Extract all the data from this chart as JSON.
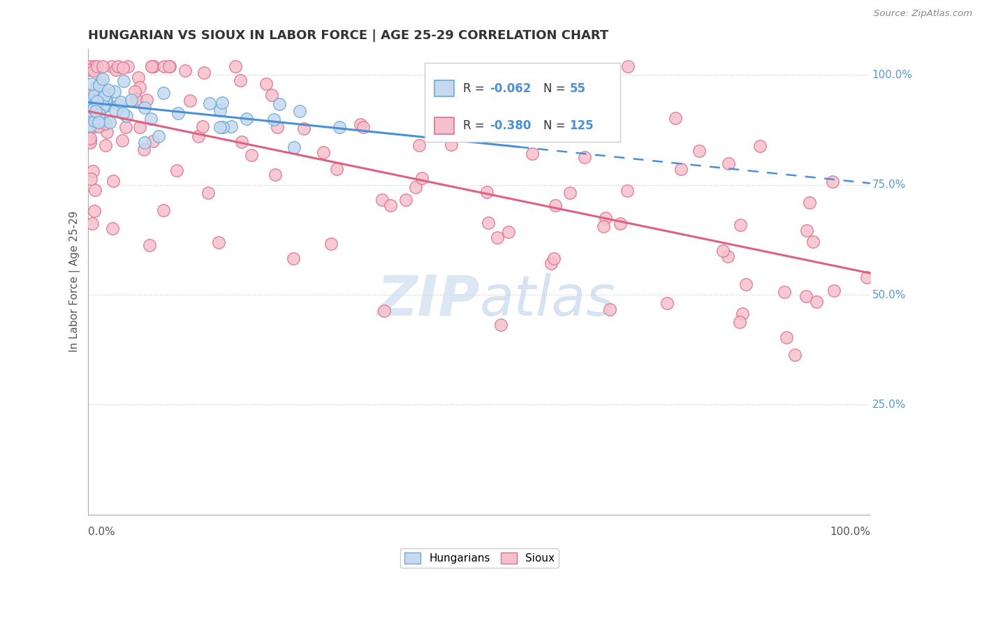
{
  "title": "HUNGARIAN VS SIOUX IN LABOR FORCE | AGE 25-29 CORRELATION CHART",
  "source": "Source: ZipAtlas.com",
  "ylabel": "In Labor Force | Age 25-29",
  "legend_label1": "Hungarians",
  "legend_label2": "Sioux",
  "r1": -0.062,
  "n1": 55,
  "r2": -0.38,
  "n2": 125,
  "color_hungarian_fill": "#c5d9f0",
  "color_hungarian_edge": "#6aaad4",
  "color_sioux_fill": "#f5c0cc",
  "color_sioux_edge": "#e07090",
  "color_line_hungarian": "#4a90d9",
  "color_line_sioux": "#e06080",
  "watermark_color": "#ccdff0",
  "ytick_color": "#5599dd",
  "grid_color": "#cccccc",
  "title_color": "#333333",
  "source_color": "#888888",
  "bg_color": "#ffffff"
}
